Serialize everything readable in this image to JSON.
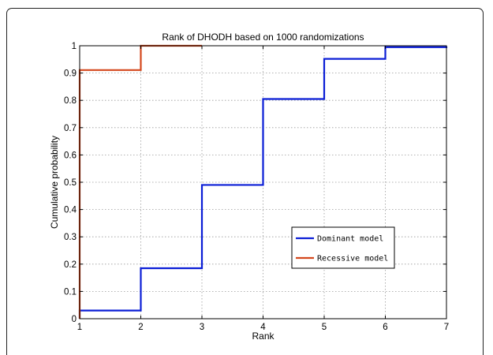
{
  "chart_data": {
    "type": "line",
    "step": true,
    "title": "Rank of DHODH based on 1000 randomizations",
    "xlabel": "Rank",
    "ylabel": "Cumulative probability",
    "xlim": [
      1,
      7
    ],
    "ylim": [
      0,
      1
    ],
    "xticks": [
      "1",
      "2",
      "3",
      "4",
      "5",
      "6",
      "7"
    ],
    "yticks": [
      "0",
      "0.1",
      "0.2",
      "0.3",
      "0.4",
      "0.5",
      "0.6",
      "0.7",
      "0.8",
      "0.9",
      "1"
    ],
    "grid": true,
    "legend_position": "lower-right",
    "series": [
      {
        "name": "Dominant model",
        "color": "#0b1ed6",
        "x": [
          1,
          2,
          3,
          4,
          5,
          6,
          7
        ],
        "y": [
          0.03,
          0.185,
          0.49,
          0.805,
          0.952,
          0.995,
          0.998
        ]
      },
      {
        "name": "Recessive model",
        "color": "#d4471c",
        "x": [
          1,
          2,
          3
        ],
        "y": [
          0.911,
          1.0,
          1.0
        ]
      }
    ]
  }
}
